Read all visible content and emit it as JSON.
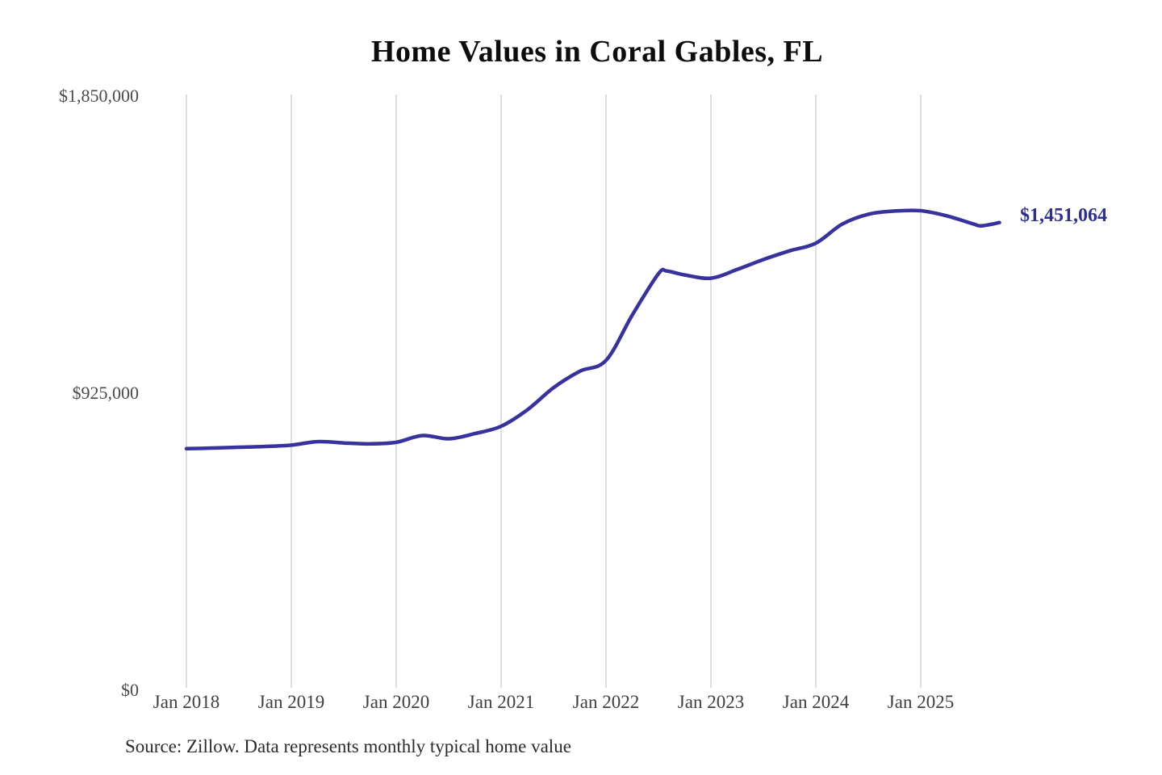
{
  "chart": {
    "title": "Home Values in Coral Gables, FL",
    "end_label": "$1,451,064",
    "source": "Source: Zillow. Data represents monthly typical home value"
  },
  "colors": {
    "background": "#ffffff",
    "line": "#38329e",
    "end_label_text": "#2d2f92",
    "grid": "#cccccc",
    "y_axis_text": "#4a4a4a",
    "x_axis_text": "#3f3f3f",
    "title_text": "#0d0d0d",
    "source_text": "#2b2b2b"
  },
  "chart_data": {
    "type": "line",
    "title": "Home Values in Coral Gables, FL",
    "xlabel": "",
    "ylabel": "",
    "ylim": [
      0,
      1850000
    ],
    "xlim": [
      2018.0,
      2025.83
    ],
    "grid": "vertical-only",
    "legend": "none",
    "series": [
      {
        "name": "Monthly typical home value",
        "x": [
          2018.0,
          2018.25,
          2018.5,
          2018.75,
          2019.0,
          2019.25,
          2019.5,
          2019.75,
          2020.0,
          2020.25,
          2020.5,
          2020.75,
          2021.0,
          2021.25,
          2021.5,
          2021.75,
          2022.0,
          2022.25,
          2022.5,
          2022.58,
          2022.75,
          2023.0,
          2023.25,
          2023.5,
          2023.75,
          2024.0,
          2024.25,
          2024.5,
          2024.75,
          2025.0,
          2025.25,
          2025.5,
          2025.58,
          2025.75
        ],
        "values": [
          747000,
          749000,
          751500,
          754000,
          758000,
          769000,
          765000,
          762000,
          767000,
          788000,
          778000,
          794000,
          817000,
          868000,
          937000,
          988000,
          1022000,
          1163000,
          1292000,
          1300000,
          1288000,
          1278000,
          1305000,
          1336000,
          1363000,
          1387000,
          1446000,
          1477000,
          1487000,
          1488000,
          1472000,
          1447000,
          1441000,
          1451064
        ]
      }
    ],
    "x_ticks": [
      {
        "x": 2018,
        "label": "Jan 2018"
      },
      {
        "x": 2019,
        "label": "Jan 2019"
      },
      {
        "x": 2020,
        "label": "Jan 2020"
      },
      {
        "x": 2021,
        "label": "Jan 2021"
      },
      {
        "x": 2022,
        "label": "Jan 2022"
      },
      {
        "x": 2023,
        "label": "Jan 2023"
      },
      {
        "x": 2024,
        "label": "Jan 2024"
      },
      {
        "x": 2025,
        "label": "Jan 2025"
      }
    ],
    "y_ticks": [
      {
        "value": 1850000,
        "label": "$1,850,000"
      },
      {
        "value": 925000,
        "label": "$925,000"
      },
      {
        "value": 0,
        "label": "$0"
      }
    ],
    "last_point": {
      "x": 2025.75,
      "value": 1451064,
      "label": "$1,451,064"
    },
    "source": "Source: Zillow. Data represents monthly typical home value"
  }
}
